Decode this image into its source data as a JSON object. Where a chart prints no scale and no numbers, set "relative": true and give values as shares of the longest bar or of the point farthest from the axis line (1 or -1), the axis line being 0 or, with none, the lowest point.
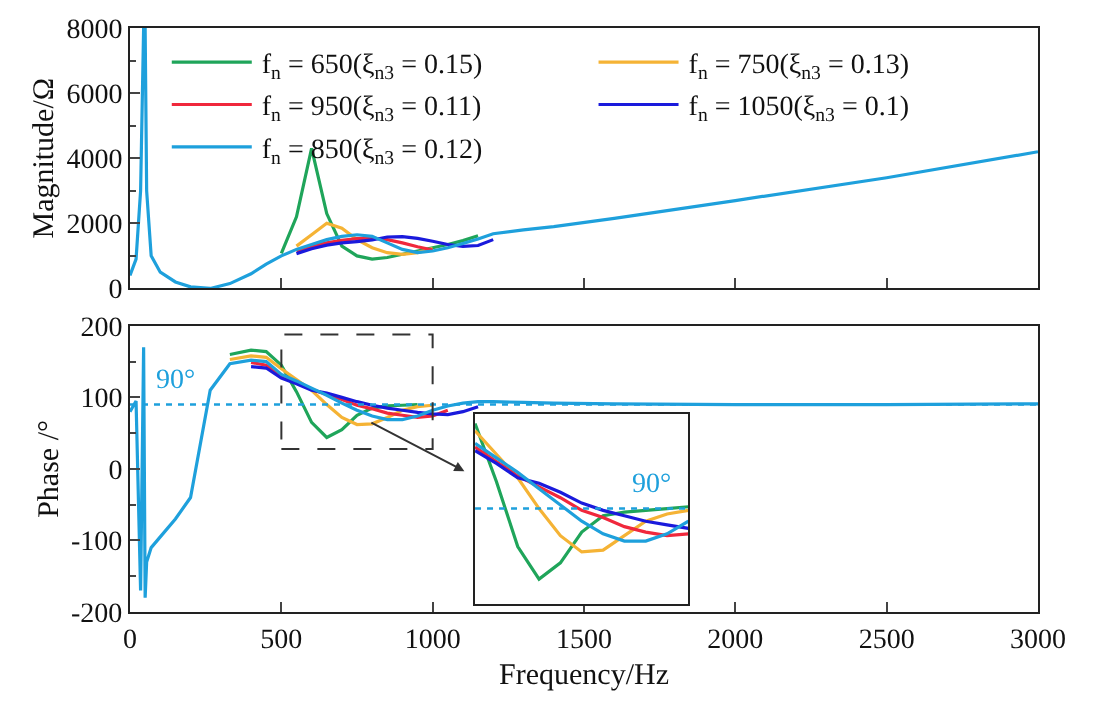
{
  "chart_data": [
    {
      "type": "line",
      "ylabel": "Magnitude/Ω",
      "xlim": [
        0,
        3000
      ],
      "xticks": [
        0,
        500,
        1000,
        1500,
        2000,
        2500,
        3000
      ],
      "ylim": [
        0,
        8000
      ],
      "yticks": [
        0,
        2000,
        4000,
        6000,
        8000
      ],
      "tick_labels": "y",
      "legend": "top",
      "x": [
        0,
        20,
        35,
        45,
        50,
        55,
        70,
        100,
        150,
        200,
        265,
        330,
        400,
        450,
        500,
        550,
        600,
        650,
        700,
        750,
        800,
        850,
        900,
        950,
        1000,
        1050,
        1100,
        1150,
        1200,
        1300,
        1400,
        1600,
        2000,
        2500,
        3000
      ],
      "series": [
        {
          "name": "f$_{n}$ = 650(ξ$_{n3}$ = 0.15)",
          "color": "#1fa55a",
          "values": [
            null,
            null,
            null,
            null,
            null,
            null,
            null,
            null,
            null,
            null,
            null,
            null,
            null,
            null,
            1080,
            2200,
            4300,
            2300,
            1300,
            1000,
            900,
            950,
            1050,
            1150,
            1250,
            1350,
            1470,
            1620,
            null,
            null,
            null,
            null,
            null,
            null,
            null
          ]
        },
        {
          "name": "f$_{n}$ = 750(ξ$_{n3}$ = 0.13)",
          "color": "#f5b335",
          "values": [
            null,
            null,
            null,
            null,
            null,
            null,
            null,
            null,
            null,
            null,
            null,
            null,
            null,
            null,
            null,
            1300,
            1650,
            2000,
            1850,
            1500,
            1250,
            1100,
            1050,
            1100,
            1230,
            null,
            null,
            null,
            null,
            null,
            null,
            null,
            null,
            null,
            null
          ]
        },
        {
          "name": "f$_{n}$ = 950(ξ$_{n3}$ = 0.11)",
          "color": "#f0283c",
          "values": [
            null,
            null,
            null,
            null,
            null,
            null,
            null,
            null,
            null,
            null,
            null,
            null,
            null,
            null,
            null,
            1150,
            1300,
            1400,
            1480,
            1530,
            1550,
            1500,
            1400,
            1280,
            1180,
            null,
            null,
            null,
            null,
            null,
            null,
            null,
            null,
            null,
            null
          ]
        },
        {
          "name": "f$_{n}$ = 1050(ξ$_{n3}$ = 0.1)",
          "color": "#1a1adc",
          "values": [
            null,
            null,
            null,
            null,
            null,
            null,
            null,
            null,
            null,
            null,
            null,
            null,
            null,
            null,
            null,
            1070,
            1220,
            1330,
            1400,
            1440,
            1490,
            1580,
            1590,
            1540,
            1450,
            1350,
            1290,
            1320,
            1500,
            null,
            null,
            null,
            null,
            null,
            null
          ]
        },
        {
          "name": "f$_{n}$ = 850(ξ$_{n3}$ = 0.12)",
          "color": "#1ea0dc",
          "values": [
            400,
            900,
            3000,
            8000,
            8000,
            3000,
            1000,
            500,
            200,
            50,
            0,
            150,
            450,
            750,
            1000,
            1200,
            1350,
            1500,
            1600,
            1650,
            1600,
            1400,
            1200,
            1100,
            1150,
            1250,
            1380,
            1520,
            1680,
            1800,
            1900,
            2150,
            2700,
            3400,
            4200
          ]
        }
      ]
    },
    {
      "type": "line",
      "ylabel": "Phase /°",
      "xlabel": "Frequency/Hz",
      "xlim": [
        0,
        3000
      ],
      "xticks": [
        0,
        500,
        1000,
        1500,
        2000,
        2500,
        3000
      ],
      "ylim": [
        -200,
        200
      ],
      "yticks": [
        -200,
        -100,
        0,
        100,
        200
      ],
      "ref_lines": [
        {
          "axis": "y",
          "value": 90,
          "label": "90°",
          "color": "#1ea0dc",
          "line_style": "dotted"
        }
      ],
      "x": [
        0,
        20,
        35,
        45,
        50,
        55,
        70,
        100,
        150,
        200,
        265,
        330,
        400,
        450,
        500,
        550,
        600,
        650,
        700,
        750,
        800,
        850,
        900,
        950,
        1000,
        1050,
        1100,
        1150,
        1200,
        1300,
        1400,
        1600,
        2000,
        2500,
        3000
      ],
      "series": [
        {
          "color": "#1fa55a",
          "values": [
            null,
            null,
            null,
            null,
            null,
            null,
            null,
            null,
            null,
            null,
            null,
            160,
            166,
            164,
            145,
            108,
            65,
            44,
            55,
            75,
            85,
            88,
            89,
            90,
            null,
            null,
            null,
            null,
            null,
            null,
            null,
            null,
            null,
            null,
            null
          ]
        },
        {
          "color": "#f5b335",
          "values": [
            null,
            null,
            null,
            null,
            null,
            null,
            null,
            null,
            null,
            null,
            null,
            153,
            158,
            156,
            140,
            125,
            110,
            90,
            72,
            62,
            63,
            72,
            82,
            87,
            89,
            null,
            null,
            null,
            null,
            null,
            null,
            null,
            null,
            null,
            null
          ]
        },
        {
          "color": "#f0283c",
          "values": [
            null,
            null,
            null,
            null,
            null,
            null,
            null,
            null,
            null,
            null,
            null,
            null,
            149,
            145,
            130,
            120,
            111,
            104,
            97,
            89,
            84,
            78,
            75,
            72,
            74,
            82,
            null,
            null,
            null,
            null,
            null,
            null,
            null,
            null,
            null
          ]
        },
        {
          "color": "#1a1adc",
          "values": [
            null,
            null,
            null,
            null,
            null,
            null,
            null,
            null,
            null,
            null,
            null,
            null,
            143,
            141,
            127,
            119,
            110,
            106,
            100,
            94,
            89,
            85,
            82,
            79,
            77,
            76,
            80,
            87,
            null,
            null,
            null,
            null,
            null,
            null,
            null
          ]
        },
        {
          "color": "#1ea0dc",
          "values": [
            80,
            95,
            -170,
            170,
            -180,
            -130,
            -110,
            -95,
            -70,
            -40,
            110,
            147,
            152,
            150,
            132,
            123,
            113,
            103,
            92,
            82,
            74,
            69,
            69,
            74,
            82,
            88,
            92,
            94,
            94,
            93,
            92,
            91,
            90,
            90,
            91
          ]
        }
      ]
    },
    {
      "type": "line",
      "relative": true,
      "tick_labels": false,
      "ref_lines": [
        {
          "axis": "y",
          "value": 0.53,
          "color": "#1ea0dc",
          "line_style": "dotted"
        }
      ],
      "annotations": [
        "90°"
      ],
      "categories": [
        null,
        null,
        null,
        null,
        null,
        null,
        null,
        null,
        null,
        null,
        null
      ],
      "series": [
        {
          "color": "#1fa55a",
          "values": [
            1,
            0.68,
            0.32,
            0.14,
            0.23,
            0.4,
            0.49,
            0.51,
            0.52,
            0.53,
            0.54
          ]
        },
        {
          "color": "#f5b335",
          "values": [
            0.96,
            0.83,
            0.7,
            0.53,
            0.38,
            0.29,
            0.3,
            0.38,
            0.46,
            0.5,
            0.52
          ]
        },
        {
          "color": "#f0283c",
          "values": [
            0.87,
            0.79,
            0.71,
            0.65,
            0.59,
            0.52,
            0.48,
            0.43,
            0.4,
            0.38,
            0.39
          ]
        },
        {
          "color": "#1a1adc",
          "values": [
            0.85,
            0.78,
            0.7,
            0.67,
            0.62,
            0.56,
            0.52,
            0.49,
            0.46,
            0.44,
            0.42
          ]
        },
        {
          "color": "#1ea0dc",
          "values": [
            0.89,
            0.81,
            0.73,
            0.64,
            0.55,
            0.46,
            0.39,
            0.35,
            0.35,
            0.39,
            0.46
          ]
        }
      ]
    }
  ]
}
